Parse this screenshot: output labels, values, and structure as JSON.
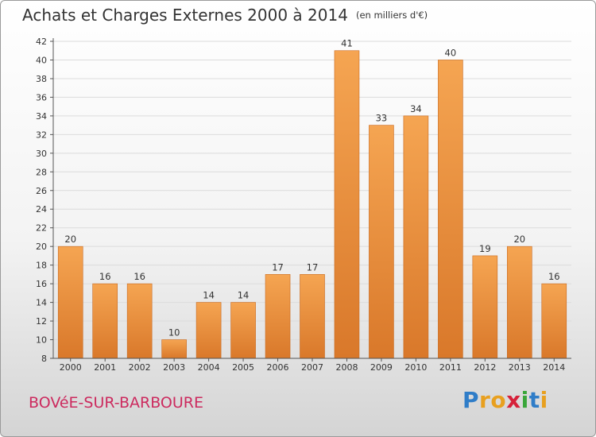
{
  "title": "Achats et Charges Externes 2000 à 2014",
  "unit": "(en milliers d'€)",
  "commune": "BOVéE-SUR-BARBOURE",
  "brand": {
    "text": "Proxiti",
    "letter_colors": [
      "#2f7dc8",
      "#e8a01f",
      "#e8a01f",
      "#d6213a",
      "#3aa63a",
      "#2f7dc8",
      "#e8a01f"
    ]
  },
  "colors": {
    "bar_top": "#f5a552",
    "bar_bottom": "#d9782a",
    "bar_edge": "#c9691f",
    "axis": "#555555",
    "grid": "#dcdcdc",
    "text": "#333333"
  },
  "chart_data": {
    "type": "bar",
    "categories": [
      "2000",
      "2001",
      "2002",
      "2003",
      "2004",
      "2005",
      "2006",
      "2007",
      "2008",
      "2009",
      "2010",
      "2011",
      "2012",
      "2013",
      "2014"
    ],
    "values": [
      20,
      16,
      16,
      10,
      14,
      14,
      17,
      17,
      41,
      33,
      34,
      40,
      19,
      20,
      16
    ],
    "data_labels": [
      "20",
      "16",
      "16",
      "10",
      "14",
      "14",
      "17",
      "17",
      "41",
      "33",
      "34",
      "40",
      "19",
      "20",
      "16"
    ],
    "ylim": [
      8,
      42
    ],
    "yticks": [
      "8",
      "10",
      "12",
      "14",
      "16",
      "18",
      "20",
      "22",
      "24",
      "26",
      "28",
      "30",
      "32",
      "34",
      "36",
      "38",
      "40",
      "42"
    ],
    "grid": true,
    "xlabel": "",
    "ylabel": ""
  }
}
